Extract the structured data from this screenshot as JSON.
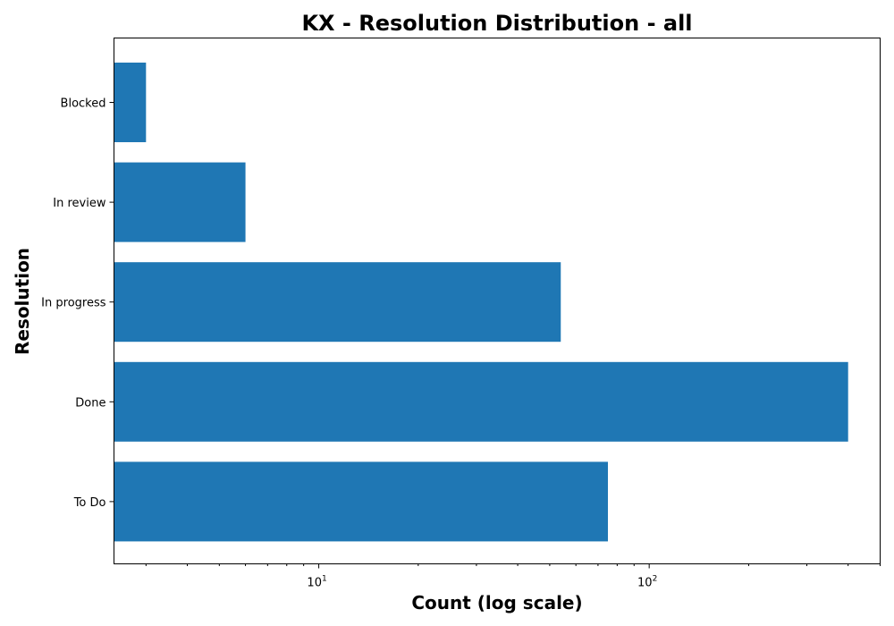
{
  "chart_data": {
    "type": "bar",
    "orientation": "horizontal",
    "title": "KX - Resolution Distribution - all",
    "xlabel": "Count (log scale)",
    "ylabel": "Resolution",
    "x_scale": "log",
    "xlim": [
      2.4,
      500
    ],
    "x_major_ticks": [
      10,
      100
    ],
    "x_major_tick_labels": [
      {
        "base": "10",
        "exp": "1"
      },
      {
        "base": "10",
        "exp": "2"
      }
    ],
    "categories": [
      "To Do",
      "Done",
      "In progress",
      "In review",
      "Blocked"
    ],
    "values": [
      75,
      400,
      54,
      6,
      3
    ],
    "bar_color": "#1f77b4",
    "grid": false,
    "legend": "none"
  }
}
